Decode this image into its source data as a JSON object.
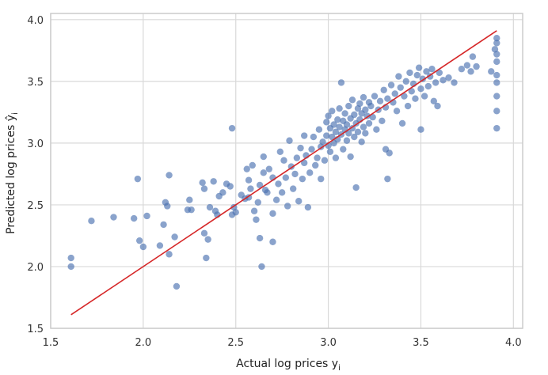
{
  "chart_data": {
    "type": "scatter",
    "title": "",
    "xlabel": "Actual log prices y",
    "xlabel_sub": "i",
    "ylabel": "Predicted log prices ŷ",
    "ylabel_sub": "i",
    "xlim": [
      1.5,
      4.05
    ],
    "ylim": [
      1.5,
      4.05
    ],
    "xticks": [
      1.5,
      2.0,
      2.5,
      3.0,
      3.5,
      4.0
    ],
    "yticks": [
      1.5,
      2.0,
      2.5,
      3.0,
      3.5,
      4.0
    ],
    "xtick_labels": [
      "1.5",
      "2.0",
      "2.5",
      "3.0",
      "3.5",
      "4.0"
    ],
    "ytick_labels": [
      "1.5",
      "2.0",
      "2.5",
      "3.0",
      "3.5",
      "4.0"
    ],
    "grid": true,
    "background": "#ffffff",
    "grid_color": "#d9d9d9",
    "frame_color": "#cccccc",
    "point_color": "#4c72b0",
    "point_opacity": 0.65,
    "line_color": "#d62728",
    "reference_line": {
      "x": [
        1.61,
        3.91
      ],
      "y": [
        1.61,
        3.91
      ]
    },
    "series": [
      {
        "values": [
          [
            1.61,
            2.07
          ],
          [
            1.61,
            2.0
          ],
          [
            1.72,
            2.37
          ],
          [
            1.84,
            2.4
          ],
          [
            1.95,
            2.39
          ],
          [
            1.97,
            2.71
          ],
          [
            1.98,
            2.21
          ],
          [
            2.0,
            2.16
          ],
          [
            2.02,
            2.41
          ],
          [
            2.09,
            2.17
          ],
          [
            2.11,
            2.34
          ],
          [
            2.12,
            2.52
          ],
          [
            2.13,
            2.49
          ],
          [
            2.14,
            2.74
          ],
          [
            2.14,
            2.1
          ],
          [
            2.17,
            2.24
          ],
          [
            2.18,
            1.84
          ],
          [
            2.24,
            2.46
          ],
          [
            2.25,
            2.54
          ],
          [
            2.26,
            2.46
          ],
          [
            2.32,
            2.68
          ],
          [
            2.33,
            2.63
          ],
          [
            2.33,
            2.27
          ],
          [
            2.34,
            2.07
          ],
          [
            2.35,
            2.22
          ],
          [
            2.36,
            2.48
          ],
          [
            2.38,
            2.69
          ],
          [
            2.39,
            2.45
          ],
          [
            2.4,
            2.42
          ],
          [
            2.41,
            2.57
          ],
          [
            2.43,
            2.6
          ],
          [
            2.45,
            2.67
          ],
          [
            2.47,
            2.65
          ],
          [
            2.48,
            2.42
          ],
          [
            2.48,
            3.12
          ],
          [
            2.49,
            2.48
          ],
          [
            2.5,
            2.44
          ],
          [
            2.53,
            2.58
          ],
          [
            2.55,
            2.55
          ],
          [
            2.56,
            2.79
          ],
          [
            2.57,
            2.7
          ],
          [
            2.57,
            2.56
          ],
          [
            2.58,
            2.63
          ],
          [
            2.59,
            2.82
          ],
          [
            2.6,
            2.45
          ],
          [
            2.61,
            2.38
          ],
          [
            2.62,
            2.52
          ],
          [
            2.63,
            2.66
          ],
          [
            2.63,
            2.23
          ],
          [
            2.64,
            2.0
          ],
          [
            2.65,
            2.89
          ],
          [
            2.65,
            2.76
          ],
          [
            2.66,
            2.62
          ],
          [
            2.67,
            2.6
          ],
          [
            2.68,
            2.79
          ],
          [
            2.7,
            2.72
          ],
          [
            2.7,
            2.43
          ],
          [
            2.7,
            2.2
          ],
          [
            2.72,
            2.54
          ],
          [
            2.73,
            2.67
          ],
          [
            2.74,
            2.93
          ],
          [
            2.75,
            2.6
          ],
          [
            2.76,
            2.86
          ],
          [
            2.77,
            2.72
          ],
          [
            2.78,
            2.49
          ],
          [
            2.79,
            3.02
          ],
          [
            2.8,
            2.81
          ],
          [
            2.81,
            2.63
          ],
          [
            2.82,
            2.75
          ],
          [
            2.83,
            2.88
          ],
          [
            2.84,
            2.53
          ],
          [
            2.85,
            2.96
          ],
          [
            2.86,
            2.71
          ],
          [
            2.87,
            2.84
          ],
          [
            2.87,
            3.06
          ],
          [
            2.88,
            2.9
          ],
          [
            2.89,
            2.48
          ],
          [
            2.9,
            2.76
          ],
          [
            2.91,
            2.95
          ],
          [
            2.92,
            3.05
          ],
          [
            2.93,
            2.82
          ],
          [
            2.94,
            2.88
          ],
          [
            2.95,
            3.11
          ],
          [
            2.96,
            2.97
          ],
          [
            2.96,
            2.71
          ],
          [
            2.97,
            3.01
          ],
          [
            2.98,
            2.86
          ],
          [
            2.99,
            3.17
          ],
          [
            2.99,
            3.06
          ],
          [
            3.0,
            2.98
          ],
          [
            3.0,
            3.22
          ],
          [
            3.01,
            3.12
          ],
          [
            3.01,
            2.93
          ],
          [
            3.02,
            3.05
          ],
          [
            3.02,
            3.26
          ],
          [
            3.03,
            3.15
          ],
          [
            3.03,
            3.0
          ],
          [
            3.04,
            3.09
          ],
          [
            3.04,
            2.88
          ],
          [
            3.05,
            3.19
          ],
          [
            3.05,
            3.03
          ],
          [
            3.06,
            3.13
          ],
          [
            3.06,
            3.28
          ],
          [
            3.07,
            3.07
          ],
          [
            3.07,
            3.49
          ],
          [
            3.08,
            3.18
          ],
          [
            3.08,
            2.95
          ],
          [
            3.09,
            3.11
          ],
          [
            3.09,
            3.24
          ],
          [
            3.1,
            3.02
          ],
          [
            3.1,
            3.15
          ],
          [
            3.11,
            3.3
          ],
          [
            3.11,
            3.08
          ],
          [
            3.12,
            3.2
          ],
          [
            3.12,
            2.89
          ],
          [
            3.13,
            3.12
          ],
          [
            3.13,
            3.35
          ],
          [
            3.14,
            3.05
          ],
          [
            3.14,
            3.23
          ],
          [
            3.15,
            3.16
          ],
          [
            3.15,
            2.64
          ],
          [
            3.16,
            3.28
          ],
          [
            3.16,
            3.09
          ],
          [
            3.17,
            3.32
          ],
          [
            3.17,
            3.19
          ],
          [
            3.18,
            3.01
          ],
          [
            3.18,
            3.24
          ],
          [
            3.19,
            3.37
          ],
          [
            3.19,
            3.13
          ],
          [
            3.2,
            3.27
          ],
          [
            3.2,
            3.08
          ],
          [
            3.21,
            3.22
          ],
          [
            3.22,
            3.33
          ],
          [
            3.22,
            3.16
          ],
          [
            3.23,
            3.3
          ],
          [
            3.24,
            3.21
          ],
          [
            3.25,
            3.38
          ],
          [
            3.26,
            3.11
          ],
          [
            3.27,
            3.27
          ],
          [
            3.28,
            3.34
          ],
          [
            3.29,
            3.18
          ],
          [
            3.3,
            3.43
          ],
          [
            3.31,
            2.95
          ],
          [
            3.31,
            3.29
          ],
          [
            3.32,
            3.36
          ],
          [
            3.32,
            2.71
          ],
          [
            3.33,
            2.92
          ],
          [
            3.34,
            3.47
          ],
          [
            3.35,
            3.33
          ],
          [
            3.36,
            3.4
          ],
          [
            3.37,
            3.26
          ],
          [
            3.38,
            3.54
          ],
          [
            3.39,
            3.45
          ],
          [
            3.4,
            3.16
          ],
          [
            3.41,
            3.38
          ],
          [
            3.42,
            3.5
          ],
          [
            3.43,
            3.3
          ],
          [
            3.44,
            3.57
          ],
          [
            3.45,
            3.42
          ],
          [
            3.46,
            3.48
          ],
          [
            3.47,
            3.36
          ],
          [
            3.48,
            3.55
          ],
          [
            3.49,
            3.61
          ],
          [
            3.5,
            3.11
          ],
          [
            3.5,
            3.44
          ],
          [
            3.51,
            3.52
          ],
          [
            3.52,
            3.38
          ],
          [
            3.53,
            3.58
          ],
          [
            3.54,
            3.46
          ],
          [
            3.55,
            3.54
          ],
          [
            3.56,
            3.6
          ],
          [
            3.57,
            3.34
          ],
          [
            3.58,
            3.49
          ],
          [
            3.59,
            3.3
          ],
          [
            3.6,
            3.57
          ],
          [
            3.62,
            3.51
          ],
          [
            3.65,
            3.53
          ],
          [
            3.68,
            3.49
          ],
          [
            3.72,
            3.6
          ],
          [
            3.75,
            3.63
          ],
          [
            3.77,
            3.58
          ],
          [
            3.78,
            3.7
          ],
          [
            3.8,
            3.62
          ],
          [
            3.88,
            3.58
          ],
          [
            3.9,
            3.76
          ],
          [
            3.91,
            3.85
          ],
          [
            3.91,
            3.81
          ],
          [
            3.91,
            3.72
          ],
          [
            3.91,
            3.66
          ],
          [
            3.91,
            3.55
          ],
          [
            3.91,
            3.49
          ],
          [
            3.91,
            3.38
          ],
          [
            3.91,
            3.26
          ],
          [
            3.91,
            3.12
          ]
        ]
      }
    ]
  }
}
